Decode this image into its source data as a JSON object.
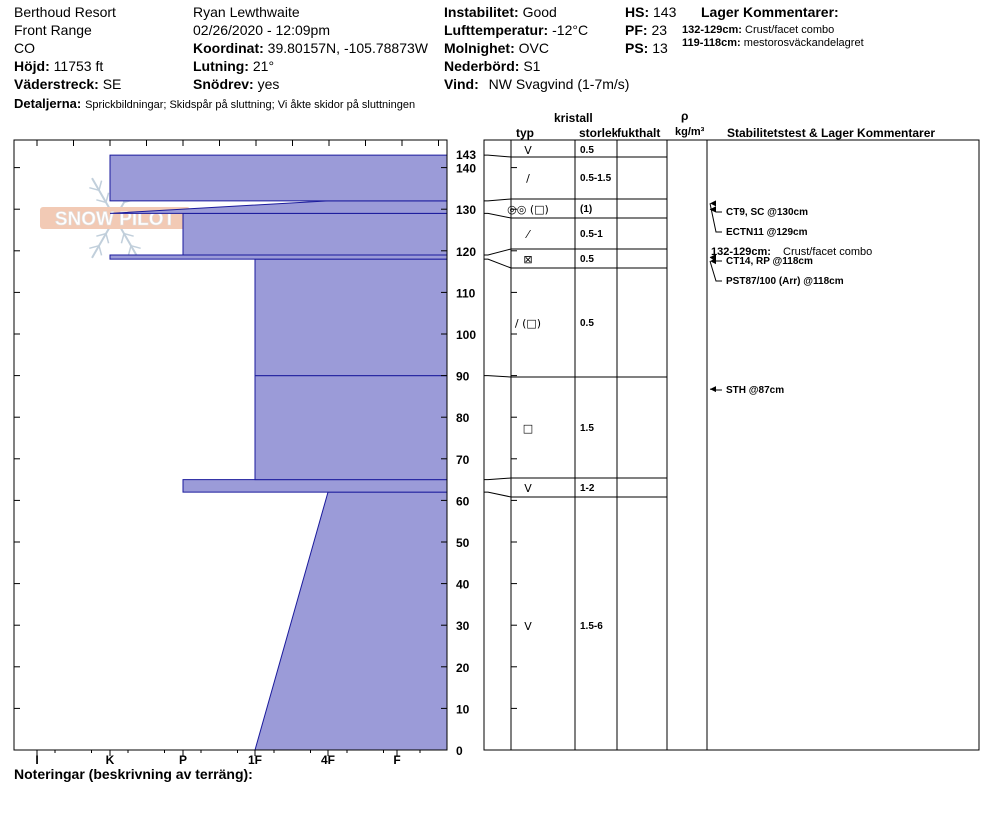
{
  "header": {
    "location": "Berthoud Resort",
    "range": "Front Range",
    "state": "CO",
    "elevation_label": "Höjd:",
    "elevation": "11753 ft",
    "aspect_label": "Väderstreck:",
    "aspect": "SE",
    "observer": "Ryan Lewthwaite",
    "datetime": "02/26/2020 - 12:09pm",
    "coord_label": "Koordinat:",
    "coord": "39.80157N, -105.78873W",
    "slope_label": "Lutning:",
    "slope": "21°",
    "wind_loading_label": "Snödrev:",
    "wind_loading": "yes",
    "stability_label": "Instabilitet:",
    "stability": "Good",
    "air_temp_label": "Lufttemperatur:",
    "air_temp": "-12°C",
    "sky_label": "Molnighet:",
    "sky": "OVC",
    "precip_label": "Nederbörd:",
    "precip": "S1",
    "wind_label": "Vind:",
    "wind": "NW Svagvind (1-7m/s)",
    "hs_label": "HS:",
    "hs": "143",
    "pf_label": "PF:",
    "pf": "23",
    "ps_label": "PS:",
    "ps": "13",
    "layer_comments_title": "Lager Kommentarer:",
    "layer_comments": [
      {
        "range": "132-129cm:",
        "text": "Crust/facet combo"
      },
      {
        "range": "119-118cm:",
        "text": "mestorosväckandelagret"
      }
    ],
    "details_label": "Detaljerna:",
    "details": "Sprickbildningar;  Skidspår på sluttning;  Vi åkte skidor på sluttningen"
  },
  "watermark": "SNOW PILOT",
  "colors": {
    "hardness_fill": "#9b9bd8",
    "hardness_edge": "#1a1a9c"
  },
  "columns": {
    "crystal": "kristall",
    "type": "typ",
    "size": "storlek",
    "moisture": "fukthalt",
    "rho": "ρ",
    "density_unit": "kg/m³",
    "stability": "Stabilitetstest & Lager Kommentarer"
  },
  "notes_label": "Noteringar (beskrivning av terräng):",
  "chart_data": {
    "type": "area",
    "ylabel": "",
    "ylim": [
      0,
      143
    ],
    "y_ticks": [
      0,
      10,
      20,
      30,
      40,
      50,
      60,
      70,
      80,
      90,
      100,
      110,
      120,
      130,
      140
    ],
    "total_height": "143",
    "hardness_labels": [
      "I",
      "K",
      "P",
      "1F",
      "4F",
      "F"
    ],
    "layers": [
      {
        "bottom": 0,
        "top": 62,
        "hardness_bottom": 3.0,
        "hardness_top": 2.0
      },
      {
        "bottom": 62,
        "top": 65,
        "hardness_bottom": 4.0,
        "hardness_top": 4.0
      },
      {
        "bottom": 65,
        "top": 90,
        "hardness_bottom": 3.0,
        "hardness_top": 3.0
      },
      {
        "bottom": 90,
        "top": 118,
        "hardness_bottom": 3.0,
        "hardness_top": 3.0
      },
      {
        "bottom": 118,
        "top": 119,
        "hardness_bottom": 5.0,
        "hardness_top": 5.0
      },
      {
        "bottom": 119,
        "top": 129,
        "hardness_bottom": 4.0,
        "hardness_top": 4.0
      },
      {
        "bottom": 129,
        "top": 132,
        "hardness_bottom": 5.0,
        "hardness_top": 2.0
      },
      {
        "bottom": 132,
        "top": 143,
        "hardness_bottom": 5.0,
        "hardness_top": 5.0
      }
    ],
    "boundaries": [
      62,
      65,
      90,
      118,
      119,
      129,
      132,
      143
    ],
    "crystal_rows": [
      {
        "grain": "V",
        "size": "1.5-6",
        "mid": 30
      },
      {
        "grain": "V",
        "size": "1-2",
        "mid": 63.5
      },
      {
        "grain": "□",
        "size": "1.5",
        "mid": 77.5
      },
      {
        "grain": "/ (□)",
        "size": "0.5",
        "mid": 104
      },
      {
        "grain": "⊠",
        "size": "0.5",
        "mid": 118.5
      },
      {
        "grain": "⁄",
        "size": "0.5-1",
        "mid": 124
      },
      {
        "grain": "◎◎ (□)",
        "size": "(1)",
        "mid": 130.5
      },
      {
        "grain": "/",
        "size": "0.5-1.5",
        "mid": 137.5
      },
      {
        "grain": "V",
        "size": "0.5",
        "mid": 143
      }
    ],
    "stability_tests": [
      {
        "label": "CT9, SC @130cm",
        "depth": 130
      },
      {
        "label": "ECTN11 @129cm",
        "depth": 129
      },
      {
        "label": "CT14, RP @118cm",
        "depth": 118
      },
      {
        "label": "PST87/100 (Arr) @118cm",
        "depth": 118
      },
      {
        "label": "STH @87cm",
        "depth": 87
      }
    ],
    "layer_note": {
      "range": "132-129cm:",
      "text": "Crust/facet combo"
    }
  }
}
